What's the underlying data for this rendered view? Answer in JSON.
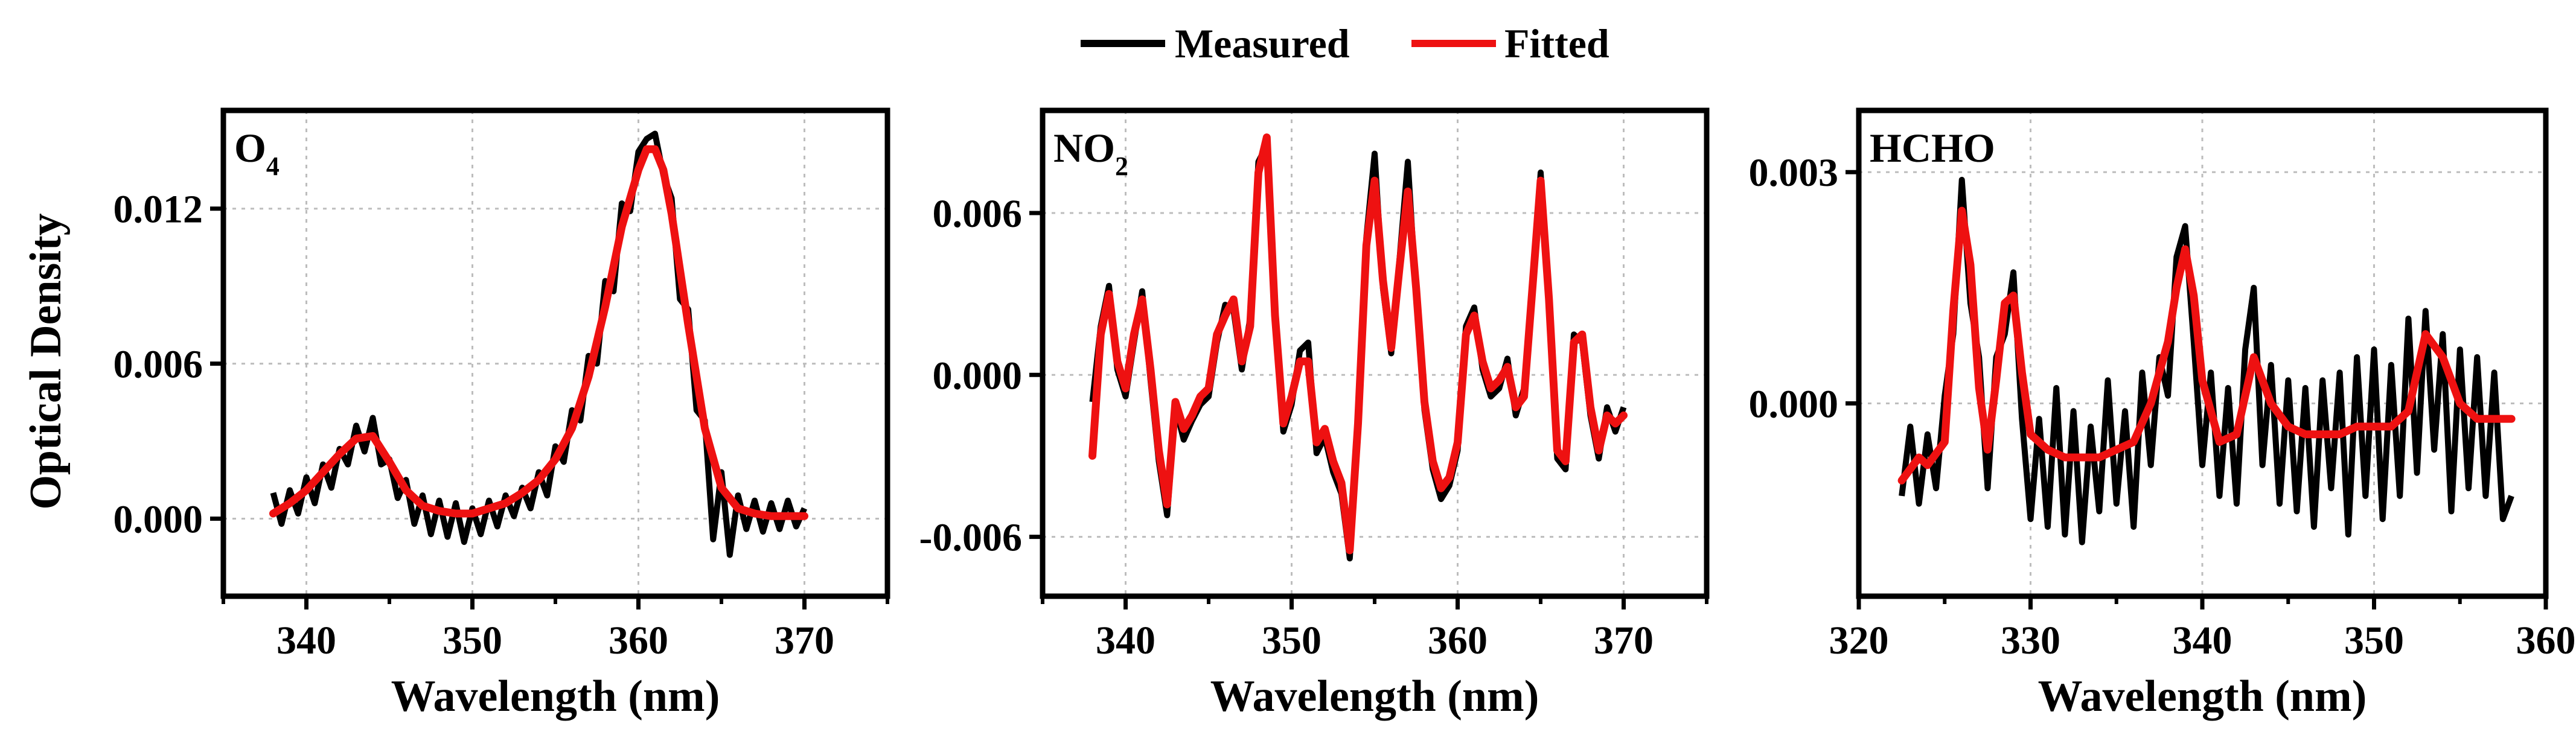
{
  "legend": {
    "items": [
      {
        "label": "Measured",
        "color": "#000000"
      },
      {
        "label": "Fitted",
        "color": "#ee1111"
      }
    ]
  },
  "ylabel": "Optical Density",
  "chart_data": [
    {
      "type": "line",
      "label_main": "O",
      "label_sub": "4",
      "xlabel": "Wavelength (nm)",
      "xlim": [
        335,
        375
      ],
      "ylim": [
        -0.003,
        0.0158
      ],
      "xticks": [
        340,
        350,
        360,
        370
      ],
      "xtick_labels": [
        "340",
        "350",
        "360",
        "370"
      ],
      "yticks": [
        0.0,
        0.006,
        0.012
      ],
      "ytick_labels": [
        "0.000",
        "0.006",
        "0.012"
      ],
      "fitted": {
        "name": "Fitted",
        "x": [
          338,
          339,
          340,
          341,
          342,
          343,
          344,
          345,
          346,
          347,
          348,
          349,
          350,
          351,
          352,
          353,
          354,
          355,
          356,
          357,
          358,
          359,
          360,
          360.5,
          361,
          361.5,
          362,
          363,
          364,
          365,
          366,
          367,
          368,
          369,
          370
        ],
        "y": [
          0.0002,
          0.0006,
          0.0011,
          0.0018,
          0.0025,
          0.0031,
          0.0032,
          0.0022,
          0.0011,
          0.0005,
          0.0003,
          0.0002,
          0.0002,
          0.0004,
          0.0006,
          0.001,
          0.0015,
          0.0023,
          0.0035,
          0.0055,
          0.0082,
          0.0113,
          0.0135,
          0.0143,
          0.0143,
          0.0135,
          0.0118,
          0.0075,
          0.0035,
          0.0012,
          0.0004,
          0.0002,
          0.0001,
          0.0001,
          0.0001
        ]
      },
      "measured": {
        "name": "Measured",
        "x": [
          338,
          338.5,
          339,
          339.5,
          340,
          340.5,
          341,
          341.5,
          342,
          342.5,
          343,
          343.5,
          344,
          344.5,
          345,
          345.5,
          346,
          346.5,
          347,
          347.5,
          348,
          348.5,
          349,
          349.5,
          350,
          350.5,
          351,
          351.5,
          352,
          352.5,
          353,
          353.5,
          354,
          354.5,
          355,
          355.5,
          356,
          356.5,
          357,
          357.5,
          358,
          358.5,
          359,
          359.5,
          360,
          360.5,
          361,
          361.5,
          362,
          362.5,
          363,
          363.5,
          364,
          364.5,
          365,
          365.5,
          366,
          366.5,
          367,
          367.5,
          368,
          368.5,
          369,
          369.5,
          370
        ],
        "y": [
          0.001,
          -0.0002,
          0.0011,
          0.0002,
          0.0016,
          0.0006,
          0.0021,
          0.0012,
          0.0027,
          0.0021,
          0.0036,
          0.0026,
          0.0039,
          0.0021,
          0.0023,
          0.0008,
          0.0015,
          -0.0002,
          0.0009,
          -0.0006,
          0.0007,
          -0.0007,
          0.0006,
          -0.0009,
          0.0004,
          -0.0006,
          0.0007,
          -0.0003,
          0.0009,
          0.0001,
          0.0012,
          0.0004,
          0.0018,
          0.0009,
          0.0028,
          0.0022,
          0.0042,
          0.0038,
          0.0063,
          0.006,
          0.0092,
          0.0088,
          0.0122,
          0.0119,
          0.0142,
          0.0147,
          0.0149,
          0.0133,
          0.0124,
          0.0085,
          0.0081,
          0.0042,
          0.0038,
          -0.0008,
          0.0018,
          -0.0014,
          0.0009,
          -0.0004,
          0.0007,
          -0.0005,
          0.0006,
          -0.0004,
          0.0007,
          -0.0003,
          0.0004
        ]
      }
    },
    {
      "type": "line",
      "label_main": "NO",
      "label_sub": "2",
      "xlabel": "Wavelength (nm)",
      "xlim": [
        335,
        375
      ],
      "ylim": [
        -0.0082,
        0.0098
      ],
      "xticks": [
        340,
        350,
        360,
        370
      ],
      "xtick_labels": [
        "340",
        "350",
        "360",
        "370"
      ],
      "yticks": [
        -0.006,
        0.0,
        0.006
      ],
      "ytick_labels": [
        "-0.006",
        "0.000",
        "0.006"
      ],
      "fitted": {
        "name": "Fitted",
        "x": [
          338,
          338.5,
          339,
          339.5,
          340,
          340.5,
          341,
          341.5,
          342,
          342.5,
          343,
          343.5,
          344,
          344.5,
          345,
          345.5,
          346,
          346.5,
          347,
          347.5,
          348,
          348.5,
          349,
          349.5,
          350,
          350.5,
          351,
          351.5,
          352,
          352.5,
          353,
          353.5,
          354,
          354.5,
          355,
          355.5,
          356,
          356.5,
          357,
          357.5,
          358,
          358.5,
          359,
          359.5,
          360,
          360.5,
          361,
          361.5,
          362,
          362.5,
          363,
          363.5,
          364,
          364.5,
          365,
          365.5,
          366,
          366.5,
          367,
          367.5,
          368,
          368.5,
          369,
          369.5,
          370
        ],
        "y": [
          -0.003,
          0.0015,
          0.003,
          0.0005,
          -0.0005,
          0.0015,
          0.0028,
          0.0002,
          -0.0028,
          -0.0048,
          -0.001,
          -0.002,
          -0.0015,
          -0.0008,
          -0.0005,
          0.0015,
          0.0022,
          0.0028,
          0.0005,
          0.0018,
          0.0075,
          0.0088,
          0.0022,
          -0.0018,
          -0.0008,
          0.0005,
          0.0005,
          -0.0025,
          -0.002,
          -0.0032,
          -0.004,
          -0.0065,
          -0.0018,
          0.0048,
          0.0072,
          0.0035,
          0.001,
          0.004,
          0.0068,
          0.0032,
          -0.001,
          -0.0032,
          -0.0042,
          -0.0038,
          -0.0025,
          0.0015,
          0.0022,
          0.0005,
          -0.0005,
          -0.0002,
          0.0003,
          -0.0012,
          -0.0008,
          0.0032,
          0.0072,
          0.0028,
          -0.0028,
          -0.0032,
          0.0012,
          0.0015,
          -0.0012,
          -0.0028,
          -0.0015,
          -0.0018,
          -0.0015
        ]
      },
      "measured": {
        "name": "Measured",
        "x": [
          338,
          338.5,
          339,
          339.5,
          340,
          340.5,
          341,
          341.5,
          342,
          342.5,
          343,
          343.5,
          344,
          344.5,
          345,
          345.5,
          346,
          346.5,
          347,
          347.5,
          348,
          348.5,
          349,
          349.5,
          350,
          350.5,
          351,
          351.5,
          352,
          352.5,
          353,
          353.5,
          354,
          354.5,
          355,
          355.5,
          356,
          356.5,
          357,
          357.5,
          358,
          358.5,
          359,
          359.5,
          360,
          360.5,
          361,
          361.5,
          362,
          362.5,
          363,
          363.5,
          364,
          364.5,
          365,
          365.5,
          366,
          366.5,
          367,
          367.5,
          368,
          368.5,
          369,
          369.5,
          370
        ],
        "y": [
          -0.001,
          0.0018,
          0.0033,
          0.0002,
          -0.0008,
          0.0012,
          0.0031,
          -0.0002,
          -0.0032,
          -0.0052,
          -0.0012,
          -0.0024,
          -0.0017,
          -0.0011,
          -0.0008,
          0.0012,
          0.0026,
          0.0024,
          0.0002,
          0.0021,
          0.0079,
          0.0085,
          0.0019,
          -0.0021,
          -0.0011,
          0.0009,
          0.0012,
          -0.0029,
          -0.0023,
          -0.0036,
          -0.0044,
          -0.0068,
          -0.0022,
          0.0051,
          0.0082,
          0.0032,
          0.0008,
          0.0043,
          0.0079,
          0.0029,
          -0.0013,
          -0.0035,
          -0.0046,
          -0.0041,
          -0.0028,
          0.0018,
          0.0025,
          0.0002,
          -0.0008,
          -0.0005,
          0.0006,
          -0.0015,
          -0.0005,
          0.0029,
          0.0075,
          0.0025,
          -0.0031,
          -0.0035,
          0.0015,
          0.0012,
          -0.0015,
          -0.0031,
          -0.0012,
          -0.0021,
          -0.0012
        ]
      }
    },
    {
      "type": "line",
      "label_main": "HCHO",
      "label_sub": "",
      "xlabel": "Wavelength (nm)",
      "xlim": [
        320,
        360
      ],
      "ylim": [
        -0.0025,
        0.0038
      ],
      "xticks": [
        320,
        330,
        340,
        350,
        360
      ],
      "xtick_labels": [
        "320",
        "330",
        "340",
        "350",
        "360"
      ],
      "yticks": [
        0.0,
        0.003
      ],
      "ytick_labels": [
        "0.000",
        "0.003"
      ],
      "fitted": {
        "name": "Fitted",
        "x": [
          322.5,
          323.5,
          324,
          325,
          325.5,
          326,
          326.5,
          327,
          327.5,
          328,
          328.5,
          329,
          329.5,
          330,
          331,
          332,
          333,
          334,
          335,
          336,
          337,
          338,
          338.5,
          339,
          339.5,
          340,
          341,
          342,
          343,
          344,
          345,
          346,
          347,
          348,
          349,
          350,
          351,
          352,
          353,
          354,
          355,
          356,
          357,
          358
        ],
        "y": [
          -0.001,
          -0.0007,
          -0.0008,
          -0.0005,
          0.0012,
          0.0025,
          0.0018,
          0.0002,
          -0.0006,
          0.0003,
          0.0013,
          0.0014,
          0.0004,
          -0.0004,
          -0.0006,
          -0.0007,
          -0.0007,
          -0.0007,
          -0.0006,
          -0.0005,
          0.0,
          0.0008,
          0.0015,
          0.002,
          0.0014,
          0.0003,
          -0.0005,
          -0.0004,
          0.0006,
          0.0,
          -0.0003,
          -0.0004,
          -0.0004,
          -0.0004,
          -0.0003,
          -0.0003,
          -0.0003,
          -0.0001,
          0.0009,
          0.0006,
          0.0,
          -0.0002,
          -0.0002,
          -0.0002
        ]
      },
      "measured": {
        "name": "Measured",
        "x": [
          322.5,
          323,
          323.5,
          324,
          324.5,
          325,
          325.5,
          326,
          326.5,
          327,
          327.5,
          328,
          328.5,
          329,
          329.5,
          330,
          330.5,
          331,
          331.5,
          332,
          332.5,
          333,
          333.5,
          334,
          334.5,
          335,
          335.5,
          336,
          336.5,
          337,
          337.5,
          338,
          338.5,
          339,
          339.5,
          340,
          340.5,
          341,
          341.5,
          342,
          342.5,
          343,
          343.5,
          344,
          344.5,
          345,
          345.5,
          346,
          346.5,
          347,
          347.5,
          348,
          348.5,
          349,
          349.5,
          350,
          350.5,
          351,
          351.5,
          352,
          352.5,
          353,
          353.5,
          354,
          354.5,
          355,
          355.5,
          356,
          356.5,
          357,
          357.5,
          358
        ],
        "y": [
          -0.0012,
          -0.0003,
          -0.0013,
          -0.0004,
          -0.0011,
          0.0001,
          0.0009,
          0.0029,
          0.0013,
          0.0006,
          -0.0011,
          0.0006,
          0.0009,
          0.0017,
          -0.0002,
          -0.0015,
          -0.0002,
          -0.0016,
          0.0002,
          -0.0017,
          -0.0001,
          -0.0018,
          -0.0003,
          -0.0014,
          0.0003,
          -0.0013,
          -0.0001,
          -0.0016,
          0.0004,
          -0.0008,
          0.0006,
          0.0001,
          0.0019,
          0.0023,
          0.0008,
          -0.0008,
          0.0004,
          -0.0012,
          0.0002,
          -0.0013,
          0.0007,
          0.0015,
          -0.0008,
          0.0005,
          -0.0013,
          0.0003,
          -0.0014,
          0.0002,
          -0.0016,
          0.0003,
          -0.0011,
          0.0004,
          -0.0017,
          0.0006,
          -0.0012,
          0.0007,
          -0.0015,
          0.0005,
          -0.0012,
          0.0011,
          -0.0009,
          0.0012,
          -0.0006,
          0.0009,
          -0.0014,
          0.0007,
          -0.0011,
          0.0006,
          -0.0012,
          0.0004,
          -0.0015,
          -0.0012
        ]
      }
    }
  ]
}
